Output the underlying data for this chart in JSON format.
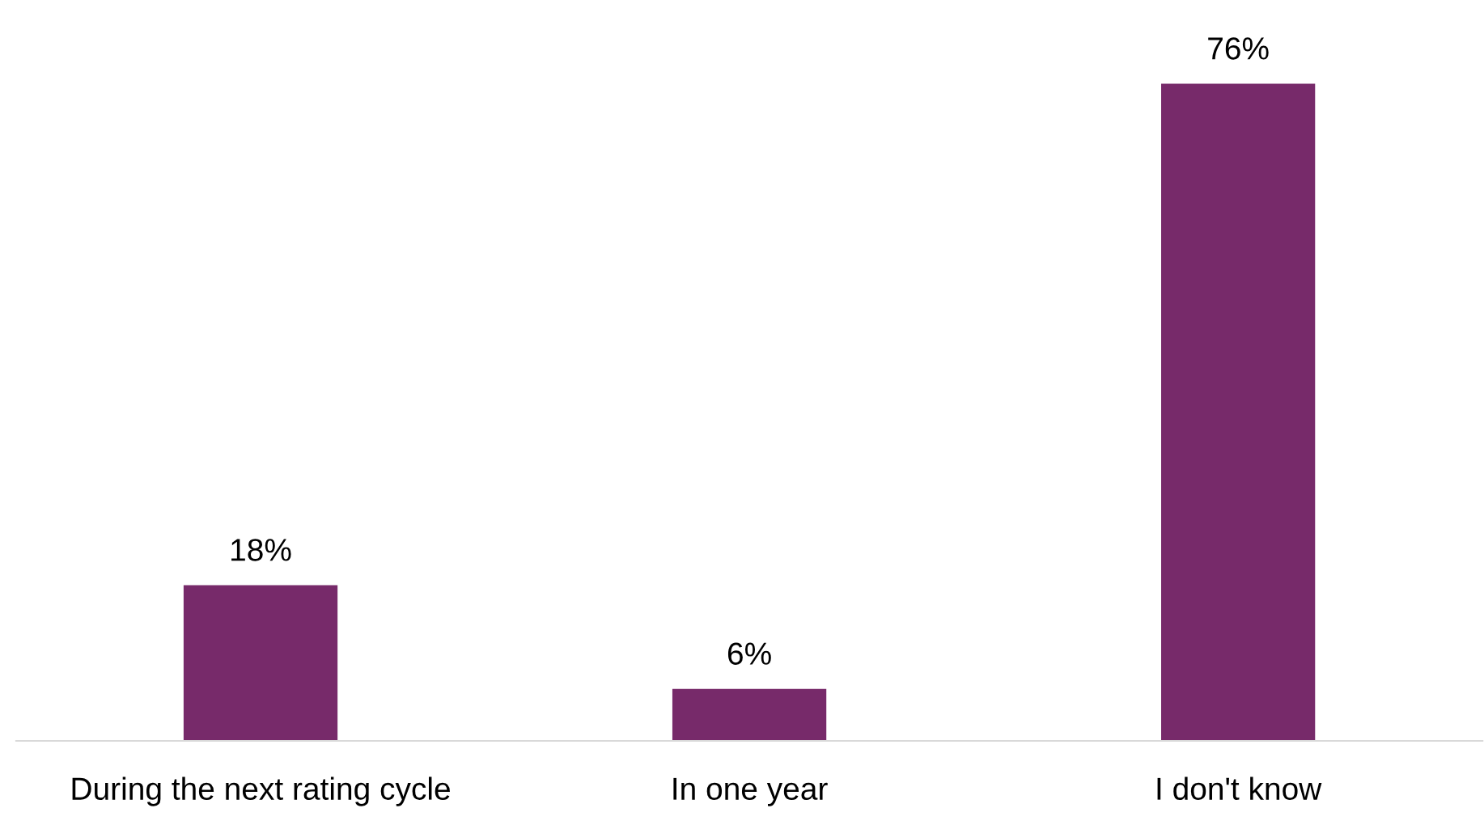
{
  "chart_data": {
    "type": "bar",
    "categories": [
      "During the next rating cycle",
      "In one year",
      "I don't know"
    ],
    "values": [
      18,
      6,
      76
    ],
    "value_labels": [
      "18%",
      "6%",
      "76%"
    ],
    "color": "#772a6a",
    "grid": false,
    "legend": false
  }
}
